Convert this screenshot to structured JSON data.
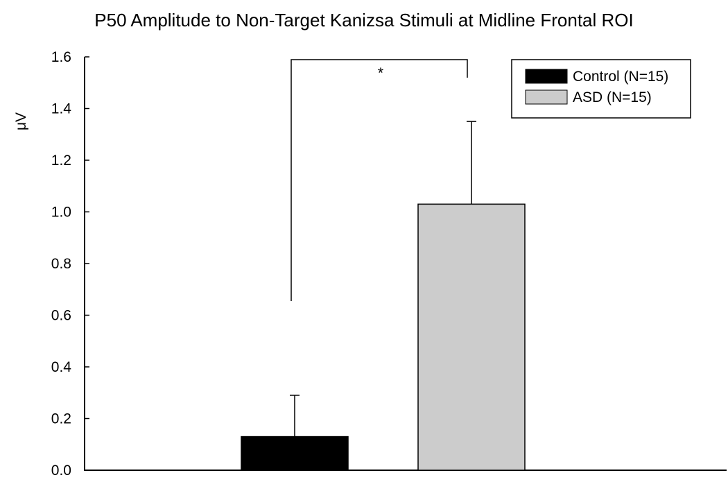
{
  "chart_data": {
    "type": "bar",
    "title": "P50 Amplitude to Non-Target Kanizsa Stimuli at Midline Frontal ROI",
    "xlabel": "",
    "ylabel": "μV",
    "ylim": [
      0,
      1.6
    ],
    "yticks": [
      "0.0",
      "0.2",
      "0.4",
      "0.6",
      "0.8",
      "1.0",
      "1.2",
      "1.4",
      "1.6"
    ],
    "grid": false,
    "legend_position": "top-right",
    "series": [
      {
        "name": "Control (N=15)",
        "value": 0.13,
        "error": 0.16,
        "color": "#000000"
      },
      {
        "name": "ASD (N=15)",
        "value": 1.03,
        "error": 0.32,
        "color": "#cccccc"
      }
    ],
    "annotation": {
      "text": "*",
      "between": [
        "Control (N=15)",
        "ASD (N=15)"
      ]
    }
  }
}
